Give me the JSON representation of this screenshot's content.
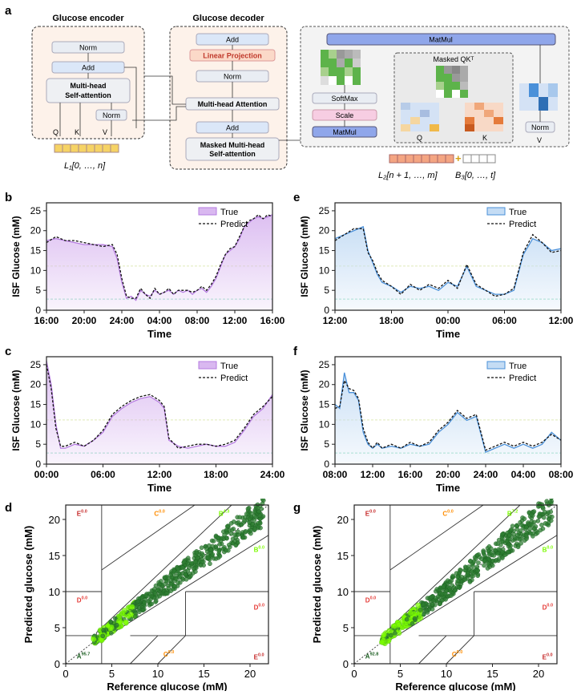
{
  "panels": {
    "a": "a",
    "b": "b",
    "c": "c",
    "d": "d",
    "e": "e",
    "f": "f",
    "g": "g"
  },
  "arch": {
    "encoder_title": "Glucose encoder",
    "decoder_title": "Glucose decoder",
    "enc": {
      "norm": "Norm",
      "add": "Add",
      "mhsa1": "Multi-head",
      "mhsa2": "Self-attention",
      "norm2": "Norm",
      "q": "Q",
      "k": "K",
      "v": "V"
    },
    "dec": {
      "add_top": "Add",
      "linear": "Linear Projection",
      "norm": "Norm",
      "mha": "Multi-head Attention",
      "add_mid": "Add",
      "masked1": "Masked Multi-head",
      "masked2": "Self-attention"
    },
    "attn": {
      "matmul_top": "MatMul",
      "softmax": "SoftMax",
      "scale": "Scale",
      "matmul_bot": "MatMul",
      "masked_qk": "Masked QKᵀ",
      "q": "Q",
      "k": "K",
      "v": "V",
      "norm": "Norm"
    },
    "inputs": {
      "l1": "L₁[0, …, n]",
      "l2": "L₂[n + 1, …, m]",
      "b3": "B₃[0, …, t]",
      "plus": "+"
    }
  },
  "colors": {
    "purple_line": "#b57be0",
    "purple_fill": "#d9b8f0",
    "blue_line": "#4a90d9",
    "blue_fill": "#c4dcf4",
    "predict": "#111111",
    "hyper": "#e8f0c8",
    "hypo": "#a8e6cf",
    "dark_green": "#2e7d32",
    "light_green": "#7cfc00"
  },
  "chart_data": [
    {
      "id": "b",
      "type": "line",
      "ylabel": "ISF Glucose (mM)",
      "xlabel": "Time",
      "ylim": [
        0,
        27
      ],
      "yticks": [
        0,
        5,
        10,
        15,
        20,
        25
      ],
      "xtick_labels": [
        "16:00",
        "20:00",
        "24:00",
        "04:00",
        "08:00",
        "12:00",
        "16:00"
      ],
      "hyper_threshold": 11.1,
      "hypo_threshold": 2.8,
      "legend": [
        "True",
        "Predict"
      ],
      "series": [
        {
          "name": "True",
          "x": [
            0,
            2,
            4,
            6,
            8,
            10,
            12,
            14,
            15,
            16,
            17,
            18,
            19,
            20,
            21,
            22,
            23,
            24,
            25,
            26,
            27,
            28,
            29,
            30,
            31,
            32,
            33,
            34,
            35,
            36,
            37,
            38,
            39,
            40,
            41,
            42,
            43,
            44,
            45,
            46,
            47,
            48
          ],
          "values": [
            17.5,
            18,
            17.5,
            17,
            16.5,
            16.5,
            16.5,
            16,
            13,
            7,
            3,
            3.5,
            2.5,
            5,
            4,
            3.5,
            5,
            4,
            4.5,
            5,
            4,
            5,
            4.5,
            5,
            4,
            5,
            5.5,
            4.5,
            6,
            8,
            11,
            14,
            15,
            16,
            18,
            21,
            22,
            23,
            23.5,
            23,
            23.5,
            24
          ]
        },
        {
          "name": "Predict",
          "x": [
            0,
            2,
            4,
            6,
            8,
            10,
            12,
            14,
            15,
            16,
            17,
            18,
            19,
            20,
            21,
            22,
            23,
            24,
            25,
            26,
            27,
            28,
            29,
            30,
            31,
            32,
            33,
            34,
            35,
            36,
            37,
            38,
            39,
            40,
            41,
            42,
            43,
            44,
            45,
            46,
            47,
            48
          ],
          "values": [
            17,
            18.5,
            17.5,
            17.5,
            17,
            16.5,
            16,
            16.5,
            14,
            8,
            3.5,
            3,
            3,
            5.5,
            4,
            3,
            5.5,
            4,
            4.5,
            5.5,
            4,
            5,
            5,
            5,
            4.5,
            5,
            6,
            5,
            6.5,
            8.5,
            11.5,
            14,
            15.5,
            16,
            18.5,
            21,
            22.5,
            23,
            24,
            23,
            24,
            23.5
          ]
        }
      ]
    },
    {
      "id": "c",
      "type": "line",
      "ylabel": "ISF Glucose (mM)",
      "xlabel": "Time",
      "ylim": [
        0,
        27
      ],
      "yticks": [
        0,
        5,
        10,
        15,
        20,
        25
      ],
      "xtick_labels": [
        "00:00",
        "06:00",
        "12:00",
        "18:00",
        "24:00"
      ],
      "hyper_threshold": 11.1,
      "hypo_threshold": 2.8,
      "legend": [
        "True",
        "Predict"
      ],
      "series": [
        {
          "name": "True",
          "x": [
            0,
            0.5,
            1,
            1.5,
            2,
            3,
            4,
            5,
            6,
            7,
            8,
            9,
            10,
            11,
            12,
            12.5,
            13,
            14,
            15,
            16,
            17,
            18,
            19,
            20,
            21,
            22,
            23,
            24
          ],
          "values": [
            26,
            20,
            10,
            4,
            4,
            5,
            4.5,
            6,
            8,
            12,
            14,
            15.5,
            16.5,
            17,
            15.5,
            14,
            6,
            4.5,
            4,
            4.5,
            5,
            4.5,
            4.5,
            5.5,
            8.5,
            12,
            14,
            17.5
          ]
        },
        {
          "name": "Predict",
          "x": [
            0,
            0.5,
            1,
            1.5,
            2,
            3,
            4,
            5,
            6,
            7,
            8,
            9,
            10,
            11,
            12,
            12.5,
            13,
            14,
            15,
            16,
            17,
            18,
            19,
            20,
            21,
            22,
            23,
            24
          ],
          "values": [
            25,
            19,
            9,
            4.5,
            4.5,
            5.5,
            4.5,
            6,
            8.5,
            12.5,
            14.5,
            16,
            17,
            17.5,
            16,
            14.5,
            6.5,
            4,
            4.5,
            5,
            5,
            4.5,
            5,
            6,
            9,
            12.5,
            14.5,
            17
          ]
        }
      ]
    },
    {
      "id": "e",
      "type": "line",
      "ylabel": "ISF Glucose (mM)",
      "xlabel": "Time",
      "ylim": [
        0,
        27
      ],
      "yticks": [
        0,
        5,
        10,
        15,
        20,
        25
      ],
      "xtick_labels": [
        "12:00",
        "18:00",
        "00:00",
        "06:00",
        "12:00"
      ],
      "hyper_threshold": 11.1,
      "hypo_threshold": 2.8,
      "legend": [
        "True",
        "Predict"
      ],
      "series": [
        {
          "name": "True",
          "x": [
            0,
            1,
            2,
            3,
            3.5,
            4,
            4.5,
            5,
            6,
            7,
            8,
            9,
            10,
            11,
            12,
            13,
            14,
            15,
            16,
            17,
            18,
            19,
            20,
            21,
            22,
            23,
            24
          ],
          "values": [
            18,
            19,
            20,
            21,
            15,
            12,
            9,
            7,
            6,
            4.5,
            6,
            5.5,
            6,
            5,
            7,
            6,
            11,
            6,
            5,
            4,
            4,
            5,
            14,
            18,
            17,
            15,
            15.5
          ]
        },
        {
          "name": "Predict",
          "x": [
            0,
            1,
            2,
            3,
            3.5,
            4,
            4.5,
            5,
            6,
            7,
            8,
            9,
            10,
            11,
            12,
            13,
            14,
            15,
            16,
            17,
            18,
            19,
            20,
            21,
            22,
            23,
            24
          ],
          "values": [
            17.5,
            19,
            20.5,
            20.5,
            14.5,
            12.5,
            9.5,
            7.5,
            6,
            4,
            6.5,
            5,
            6.5,
            5.5,
            7.5,
            5.5,
            11.5,
            6.5,
            5,
            3.5,
            4,
            5.5,
            14.5,
            19,
            17,
            14.5,
            15
          ]
        }
      ]
    },
    {
      "id": "f",
      "type": "line",
      "ylabel": "ISF Glucose (mM)",
      "xlabel": "Time",
      "ylim": [
        0,
        27
      ],
      "yticks": [
        0,
        5,
        10,
        15,
        20,
        25
      ],
      "xtick_labels": [
        "08:00",
        "12:00",
        "16:00",
        "20:00",
        "24:00",
        "04:00",
        "08:00"
      ],
      "hyper_threshold": 11.1,
      "hypo_threshold": 2.8,
      "legend": [
        "True",
        "Predict"
      ],
      "series": [
        {
          "name": "True",
          "x": [
            0,
            0.5,
            1,
            1.5,
            2,
            2.5,
            3,
            3.5,
            4,
            4.5,
            5,
            6,
            7,
            8,
            9,
            10,
            11,
            12,
            13,
            14,
            15,
            16,
            17,
            18,
            19,
            20,
            21,
            22,
            23,
            24
          ],
          "values": [
            15,
            14,
            23,
            18,
            18,
            16,
            8,
            5,
            4,
            5,
            4,
            4.5,
            4,
            5,
            4.5,
            5,
            8,
            10,
            13,
            11,
            12,
            3,
            4,
            5,
            4,
            5,
            4,
            5,
            8,
            6
          ]
        },
        {
          "name": "Predict",
          "x": [
            0,
            0.5,
            1,
            1.5,
            2,
            2.5,
            3,
            3.5,
            4,
            4.5,
            5,
            6,
            7,
            8,
            9,
            10,
            11,
            12,
            13,
            14,
            15,
            16,
            17,
            18,
            19,
            20,
            21,
            22,
            23,
            24
          ],
          "values": [
            14,
            14.5,
            21,
            19,
            18.5,
            16.5,
            9,
            5.5,
            4,
            5.5,
            4,
            5,
            4,
            5.5,
            4.5,
            5.5,
            8.5,
            10.5,
            13.5,
            11.5,
            12.5,
            3.5,
            4.5,
            5.5,
            4.5,
            5.5,
            4.5,
            5.5,
            7.5,
            6
          ]
        }
      ]
    },
    {
      "id": "d",
      "type": "scatter",
      "title": "",
      "xlabel": "Reference glucose (mM)",
      "ylabel": "Predicted glucose (mM)",
      "xlim": [
        0,
        22
      ],
      "ylim": [
        0,
        22
      ],
      "ticks": [
        0,
        5,
        10,
        15,
        20
      ],
      "zone_labels": {
        "A": "A",
        "A_pct": "95.7",
        "B_up": "B",
        "B_up_pct": "4.3",
        "B_low": "B",
        "B_low_pct": "0.0",
        "C_up": "C",
        "C_up_pct": "0.0",
        "C_low": "C",
        "C_low_pct": "0.0",
        "D_left": "D",
        "D_left_pct": "0.0",
        "D_right": "D",
        "D_right_pct": "0.0",
        "E_up": "E",
        "E_up_pct": "0.0",
        "E_low": "E",
        "E_low_pct": "0.0"
      },
      "zone_colors": {
        "A": "#1b5e20",
        "B": "#7cfc00",
        "C": "#ff8c00",
        "D": "#e53935",
        "E": "#c62828"
      }
    },
    {
      "id": "g",
      "type": "scatter",
      "title": "",
      "xlabel": "Reference glucose (mM)",
      "ylabel": "Predicted glucose (mM)",
      "xlim": [
        0,
        22
      ],
      "ylim": [
        0,
        22
      ],
      "ticks": [
        0,
        5,
        10,
        15,
        20
      ],
      "zone_labels": {
        "A": "A",
        "A_pct": "92.8",
        "B_up": "B",
        "B_up_pct": "7.2",
        "B_low": "B",
        "B_low_pct": "0.0",
        "C_up": "C",
        "C_up_pct": "0.0",
        "C_low": "C",
        "C_low_pct": "0.0",
        "D_left": "D",
        "D_left_pct": "0.0",
        "D_right": "D",
        "D_right_pct": "0.0",
        "E_up": "E",
        "E_up_pct": "0.0",
        "E_low": "E",
        "E_low_pct": "0.0"
      },
      "zone_colors": {
        "A": "#1b5e20",
        "B": "#7cfc00",
        "C": "#ff8c00",
        "D": "#e53935",
        "E": "#c62828"
      }
    }
  ]
}
